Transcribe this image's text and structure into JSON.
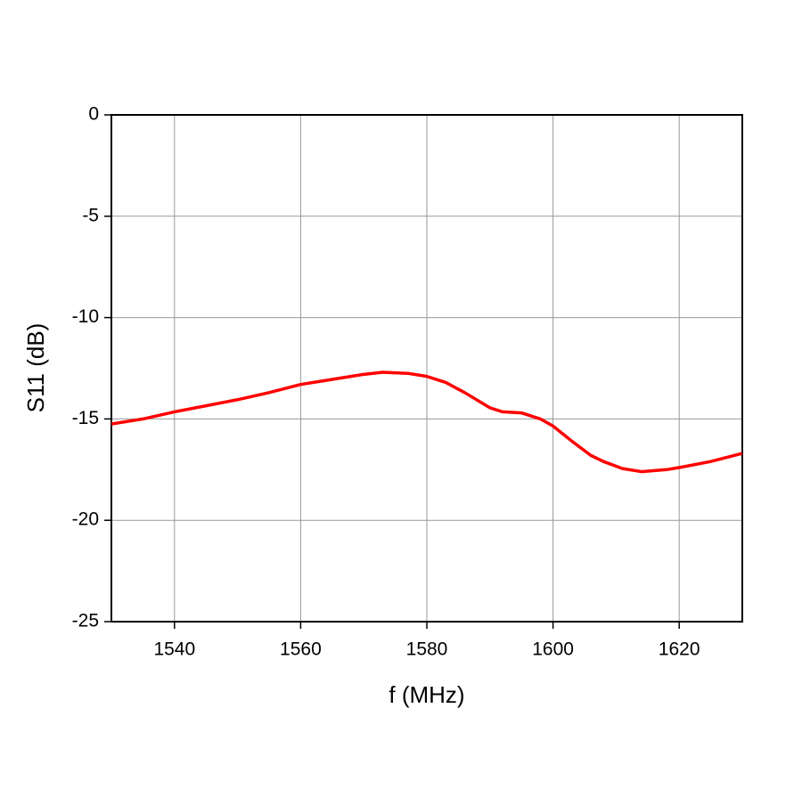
{
  "chart_data": {
    "type": "line",
    "x_label": "f (MHz)",
    "y_label": "S11 (dB)",
    "x": [
      1530,
      1535,
      1540,
      1545,
      1550,
      1555,
      1560,
      1565,
      1570,
      1573,
      1577,
      1580,
      1583,
      1586,
      1590,
      1592,
      1595,
      1598,
      1600,
      1603,
      1606,
      1608,
      1611,
      1614,
      1618,
      1620,
      1625,
      1630
    ],
    "series": [
      {
        "name": "S11",
        "color": "#ff0000",
        "values": [
          -15.25,
          -15.0,
          -14.65,
          -14.35,
          -14.05,
          -13.7,
          -13.3,
          -13.05,
          -12.8,
          -12.7,
          -12.75,
          -12.9,
          -13.2,
          -13.7,
          -14.45,
          -14.65,
          -14.7,
          -15.0,
          -15.35,
          -16.1,
          -16.8,
          -17.1,
          -17.45,
          -17.6,
          -17.5,
          -17.4,
          -17.1,
          -16.7
        ]
      }
    ],
    "xlim": [
      1530,
      1630
    ],
    "xticks": [
      1540,
      1560,
      1580,
      1600,
      1620
    ],
    "ylim": [
      -25,
      0
    ],
    "yticks": [
      0,
      -5,
      -10,
      -15,
      -20,
      -25
    ],
    "grid": true
  }
}
